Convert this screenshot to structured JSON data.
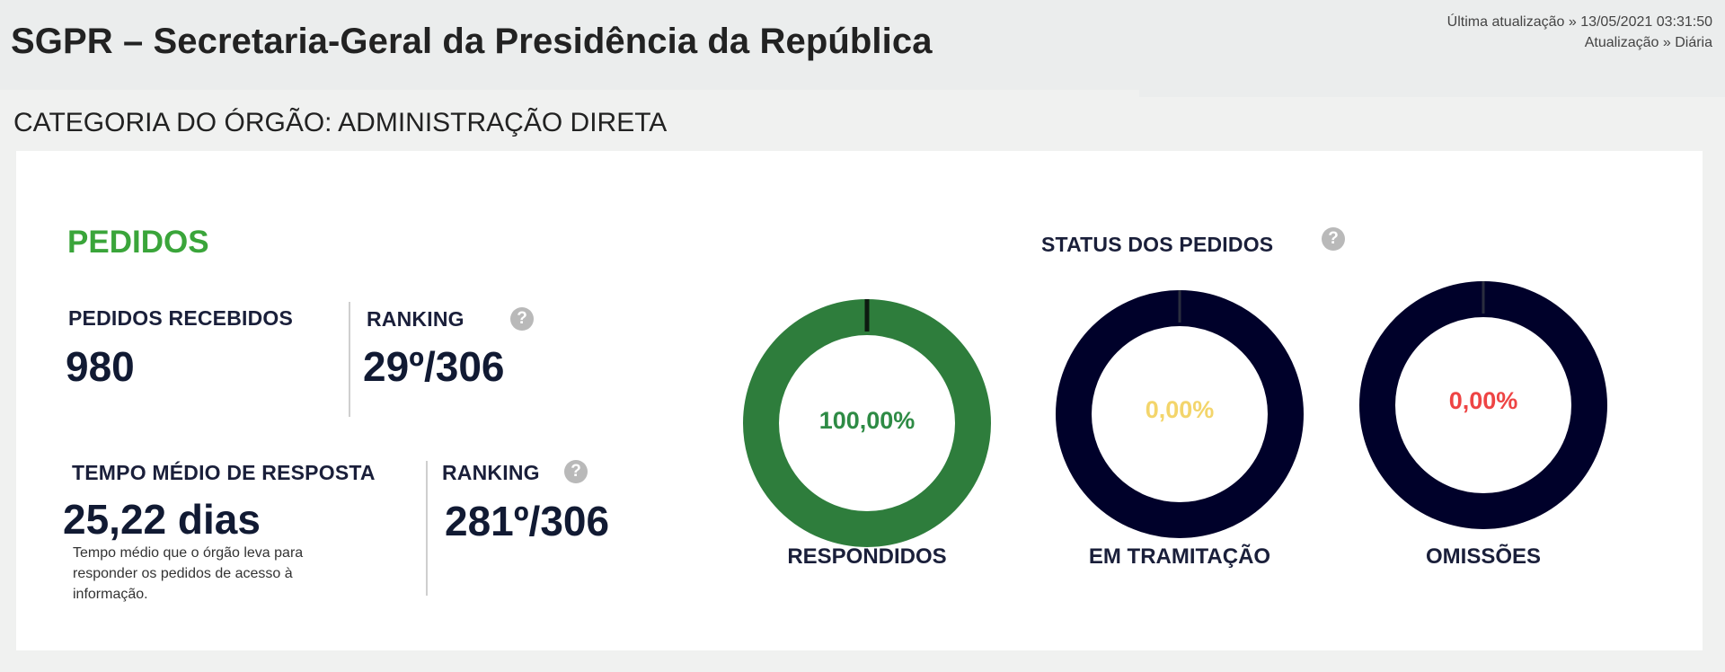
{
  "header": {
    "title": "SGPR – Secretaria-Geral da Presidência da República",
    "last_update": "Última atualização » 13/05/2021 03:31:50",
    "frequency": "Atualização » Diária"
  },
  "category": "CATEGORIA DO ÓRGÃO: ADMINISTRAÇÃO DIRETA",
  "pedidos": {
    "title": "PEDIDOS",
    "recebidos_label": "PEDIDOS RECEBIDOS",
    "recebidos_value": "980",
    "ranking_label": "RANKING",
    "ranking_value": "29º/306",
    "tempo_label": "TEMPO MÉDIO DE RESPOSTA",
    "tempo_value": "25,22 dias",
    "tempo_desc": "Tempo médio que o órgão leva para responder os pedidos de acesso à informação.",
    "tempo_ranking_label": "RANKING",
    "tempo_ranking_value": "281º/306",
    "help_glyph": "?"
  },
  "status": {
    "title": "STATUS DOS PEDIDOS",
    "items": [
      {
        "label": "RESPONDIDOS",
        "percent_text": "100,00%",
        "fraction": 1.0,
        "fill_color": "#2e7d3c",
        "text_color": "#2e8b45"
      },
      {
        "label": "EM TRAMITAÇÃO",
        "percent_text": "0,00%",
        "fraction": 0.0,
        "fill_color": "#00012a",
        "text_color": "#f3d56b"
      },
      {
        "label": "OMISSÕES",
        "percent_text": "0,00%",
        "fraction": 0.0,
        "fill_color": "#00012a",
        "text_color": "#ee4444"
      }
    ]
  },
  "colors": {
    "accent_green": "#3aa53a",
    "ring_empty": "#00012a",
    "ring_full": "#2e7d3c"
  }
}
